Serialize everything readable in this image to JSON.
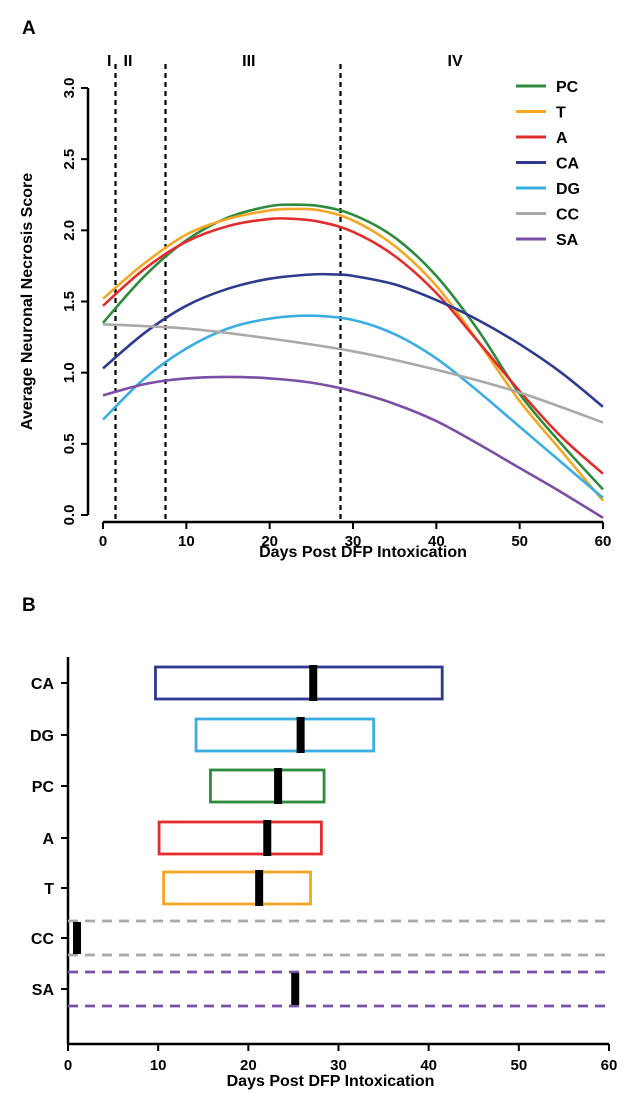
{
  "panel_a_label": "A",
  "panel_b_label": "B",
  "chart_data": [
    {
      "type": "line",
      "panel": "A",
      "xlabel": "Days Post DFP Intoxication",
      "ylabel": "Average Neuronal Necrosis Score",
      "xlim": [
        0,
        60
      ],
      "ylim": [
        0,
        3
      ],
      "x_ticks": [
        "0",
        "10",
        "20",
        "30",
        "40",
        "50",
        "60"
      ],
      "y_ticks": [
        "0.0",
        "0.5",
        "1.0",
        "1.5",
        "2.0",
        "2.5",
        "3.0"
      ],
      "x_tick_values": [
        0,
        10,
        20,
        30,
        40,
        50,
        60
      ],
      "y_tick_values": [
        0,
        0.5,
        1,
        1.5,
        2,
        2.5,
        3
      ],
      "legend_position": "top-right",
      "phase_lines": [
        {
          "label": "I",
          "x": 1.5
        },
        {
          "label": "II",
          "x": 7.5
        },
        {
          "label": "III",
          "x": 28.5
        },
        {
          "label": "IV",
          "x": null
        }
      ],
      "series": [
        {
          "name": "PC",
          "color": "#2e8b3e",
          "points": [
            [
              0,
              1.35
            ],
            [
              5,
              1.68
            ],
            [
              10,
              1.93
            ],
            [
              15,
              2.09
            ],
            [
              20,
              2.17
            ],
            [
              23,
              2.18
            ],
            [
              26,
              2.17
            ],
            [
              30,
              2.11
            ],
            [
              35,
              1.95
            ],
            [
              40,
              1.68
            ],
            [
              45,
              1.3
            ],
            [
              50,
              0.85
            ],
            [
              55,
              0.5
            ],
            [
              60,
              0.18
            ]
          ]
        },
        {
          "name": "T",
          "color": "#f5a623",
          "points": [
            [
              0,
              1.52
            ],
            [
              5,
              1.77
            ],
            [
              10,
              1.97
            ],
            [
              15,
              2.08
            ],
            [
              20,
              2.14
            ],
            [
              23,
              2.15
            ],
            [
              26,
              2.14
            ],
            [
              30,
              2.07
            ],
            [
              35,
              1.89
            ],
            [
              40,
              1.61
            ],
            [
              45,
              1.22
            ],
            [
              50,
              0.8
            ],
            [
              55,
              0.45
            ],
            [
              60,
              0.1
            ]
          ]
        },
        {
          "name": "A",
          "color": "#e32c2c",
          "points": [
            [
              0,
              1.47
            ],
            [
              5,
              1.73
            ],
            [
              10,
              1.92
            ],
            [
              15,
              2.03
            ],
            [
              20,
              2.08
            ],
            [
              23,
              2.08
            ],
            [
              26,
              2.06
            ],
            [
              30,
              1.99
            ],
            [
              35,
              1.82
            ],
            [
              40,
              1.56
            ],
            [
              45,
              1.22
            ],
            [
              50,
              0.87
            ],
            [
              55,
              0.55
            ],
            [
              60,
              0.29
            ]
          ]
        },
        {
          "name": "CA",
          "color": "#2e3a8f",
          "points": [
            [
              0,
              1.03
            ],
            [
              5,
              1.28
            ],
            [
              10,
              1.47
            ],
            [
              15,
              1.59
            ],
            [
              20,
              1.66
            ],
            [
              25,
              1.69
            ],
            [
              28,
              1.69
            ],
            [
              30,
              1.68
            ],
            [
              35,
              1.62
            ],
            [
              40,
              1.51
            ],
            [
              45,
              1.37
            ],
            [
              50,
              1.2
            ],
            [
              55,
              1.0
            ],
            [
              60,
              0.76
            ]
          ]
        },
        {
          "name": "DG",
          "color": "#3aaee3",
          "points": [
            [
              0,
              0.67
            ],
            [
              5,
              0.96
            ],
            [
              10,
              1.17
            ],
            [
              15,
              1.31
            ],
            [
              20,
              1.38
            ],
            [
              25,
              1.4
            ],
            [
              30,
              1.37
            ],
            [
              35,
              1.27
            ],
            [
              40,
              1.1
            ],
            [
              45,
              0.87
            ],
            [
              50,
              0.62
            ],
            [
              55,
              0.37
            ],
            [
              60,
              0.12
            ]
          ]
        },
        {
          "name": "CC",
          "color": "#a9a9a9",
          "points": [
            [
              0,
              1.34
            ],
            [
              10,
              1.31
            ],
            [
              20,
              1.24
            ],
            [
              30,
              1.15
            ],
            [
              40,
              1.02
            ],
            [
              50,
              0.86
            ],
            [
              60,
              0.65
            ]
          ]
        },
        {
          "name": "SA",
          "color": "#7b4fa6",
          "points": [
            [
              0,
              0.84
            ],
            [
              5,
              0.92
            ],
            [
              10,
              0.96
            ],
            [
              15,
              0.97
            ],
            [
              20,
              0.96
            ],
            [
              25,
              0.93
            ],
            [
              30,
              0.87
            ],
            [
              35,
              0.78
            ],
            [
              40,
              0.66
            ],
            [
              45,
              0.5
            ],
            [
              50,
              0.33
            ],
            [
              55,
              0.16
            ],
            [
              60,
              -0.02
            ]
          ]
        }
      ]
    },
    {
      "type": "range",
      "panel": "B",
      "xlabel": "Days Post DFP Intoxication",
      "xlim": [
        0,
        60
      ],
      "x_ticks": [
        "0",
        "10",
        "20",
        "30",
        "40",
        "50",
        "60"
      ],
      "x_tick_values": [
        0,
        10,
        20,
        30,
        40,
        50,
        60
      ],
      "categories": [
        "CA",
        "DG",
        "PC",
        "A",
        "T",
        "CC",
        "SA"
      ],
      "ranges": [
        {
          "name": "CA",
          "color": "#2e3a8f",
          "low": 9.7,
          "high": 41.5,
          "peak": 27.2,
          "style": "box"
        },
        {
          "name": "DG",
          "color": "#3aaee3",
          "low": 14.2,
          "high": 33.9,
          "peak": 25.8,
          "style": "box"
        },
        {
          "name": "PC",
          "color": "#2e8b3e",
          "low": 15.8,
          "high": 28.4,
          "peak": 23.3,
          "style": "box"
        },
        {
          "name": "A",
          "color": "#e32c2c",
          "low": 10.1,
          "high": 28.1,
          "peak": 22.1,
          "style": "box"
        },
        {
          "name": "T",
          "color": "#f5a623",
          "low": 10.6,
          "high": 26.9,
          "peak": 21.2,
          "style": "box"
        },
        {
          "name": "CC",
          "color": "#a9a9a9",
          "low": 0,
          "high": 60,
          "peak": 1.0,
          "style": "dashed"
        },
        {
          "name": "SA",
          "color": "#7b4fa6",
          "low": 0,
          "high": 60,
          "peak": 25.2,
          "style": "dashed"
        }
      ]
    }
  ]
}
